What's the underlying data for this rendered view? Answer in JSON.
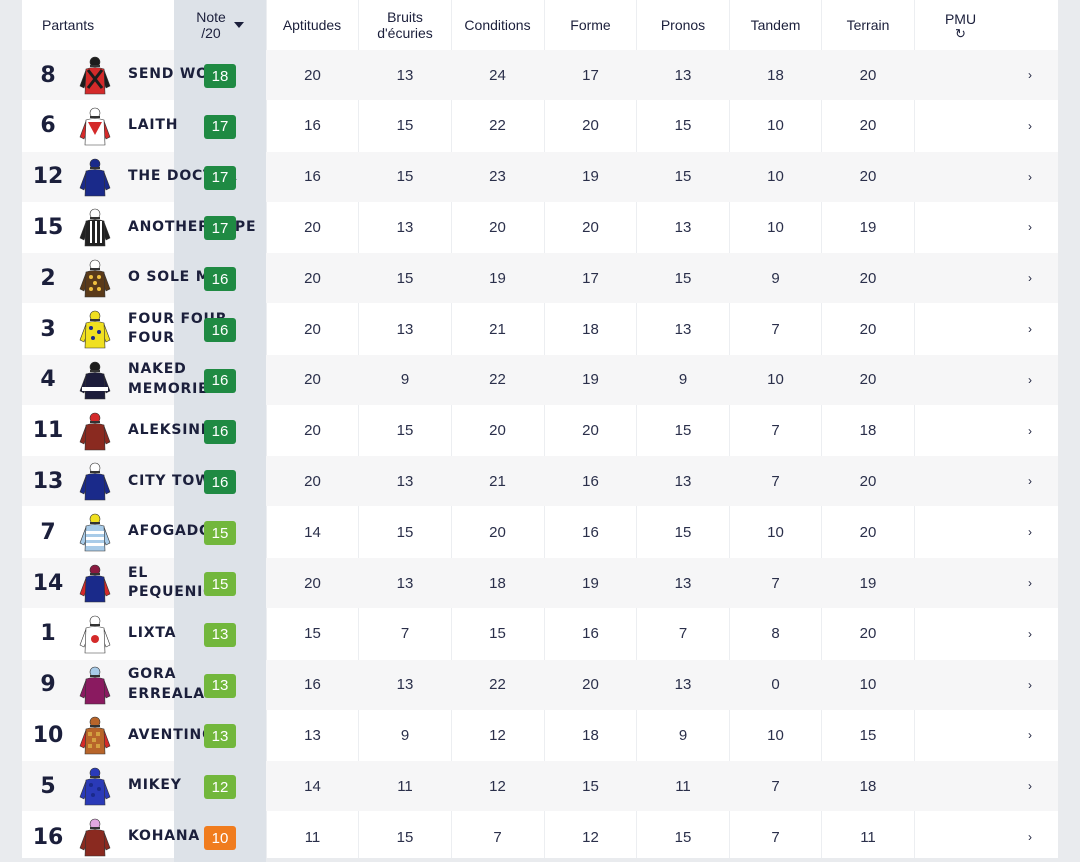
{
  "header": {
    "partants": "Partants",
    "note_line1": "Note",
    "note_line2": "/20",
    "aptitudes": "Aptitudes",
    "bruits_line1": "Bruits",
    "bruits_line2": "d'écuries",
    "conditions": "Conditions",
    "forme": "Forme",
    "pronos": "Pronos",
    "tandem": "Tandem",
    "terrain": "Terrain",
    "pmu": "PMU",
    "refresh_icon": "↻"
  },
  "colors": {
    "note_dark_green": "#1f8a43",
    "note_light_green": "#72b73c",
    "note_orange": "#f07c1e"
  },
  "rows": [
    {
      "num": "8",
      "name": "SEND WOOD",
      "note": "18",
      "note_color": "#1f8a43",
      "aptitudes": "20",
      "bruits": "13",
      "conditions": "24",
      "forme": "17",
      "pronos": "13",
      "tandem": "18",
      "terrain": "20",
      "silk": {
        "body": "#d42a2a",
        "sleeve": "#1c1c1c",
        "cap": "#1c1c1c",
        "pattern": "cross"
      }
    },
    {
      "num": "6",
      "name": "LAITH",
      "note": "17",
      "note_color": "#1f8a43",
      "aptitudes": "16",
      "bruits": "15",
      "conditions": "22",
      "forme": "20",
      "pronos": "15",
      "tandem": "10",
      "terrain": "20",
      "silk": {
        "body": "#ffffff",
        "sleeve": "#d42a2a",
        "cap": "#ffffff",
        "pattern": "chevron"
      }
    },
    {
      "num": "12",
      "name": "THE DOCTOR",
      "note": "17",
      "note_color": "#1f8a43",
      "aptitudes": "16",
      "bruits": "15",
      "conditions": "23",
      "forme": "19",
      "pronos": "15",
      "tandem": "10",
      "terrain": "20",
      "silk": {
        "body": "#1a2a8a",
        "sleeve": "#1a2a8a",
        "cap": "#1a2a8a",
        "pattern": "plain"
      }
    },
    {
      "num": "15",
      "name": "ANOTHERHOPE",
      "note": "17",
      "note_color": "#1f8a43",
      "aptitudes": "20",
      "bruits": "13",
      "conditions": "20",
      "forme": "20",
      "pronos": "13",
      "tandem": "10",
      "terrain": "19",
      "silk": {
        "body": "#222222",
        "sleeve": "#222222",
        "cap": "#ffffff",
        "pattern": "stripes"
      }
    },
    {
      "num": "2",
      "name": "O SOLE MIO",
      "note": "16",
      "note_color": "#1f8a43",
      "aptitudes": "20",
      "bruits": "15",
      "conditions": "19",
      "forme": "17",
      "pronos": "15",
      "tandem": "9",
      "terrain": "20",
      "silk": {
        "body": "#5a3a1a",
        "sleeve": "#5a3a1a",
        "cap": "#ffffff",
        "pattern": "dots"
      }
    },
    {
      "num": "3",
      "name": "FOUR FOUR FOUR",
      "note": "16",
      "note_color": "#1f8a43",
      "aptitudes": "20",
      "bruits": "13",
      "conditions": "21",
      "forme": "18",
      "pronos": "13",
      "tandem": "7",
      "terrain": "20",
      "silk": {
        "body": "#f0e020",
        "sleeve": "#f0e020",
        "cap": "#f0e020",
        "pattern": "stars"
      }
    },
    {
      "num": "4",
      "name": "NAKED MEMORIES",
      "note": "16",
      "note_color": "#1f8a43",
      "aptitudes": "20",
      "bruits": "9",
      "conditions": "22",
      "forme": "19",
      "pronos": "9",
      "tandem": "10",
      "terrain": "20",
      "silk": {
        "body": "#1c1c3a",
        "sleeve": "#1c1c3a",
        "cap": "#1c1c1c",
        "pattern": "band"
      }
    },
    {
      "num": "11",
      "name": "ALEKSINE",
      "note": "16",
      "note_color": "#1f8a43",
      "aptitudes": "20",
      "bruits": "15",
      "conditions": "20",
      "forme": "20",
      "pronos": "15",
      "tandem": "7",
      "terrain": "18",
      "silk": {
        "body": "#8a2a20",
        "sleeve": "#8a2a20",
        "cap": "#d42a2a",
        "pattern": "plain"
      }
    },
    {
      "num": "13",
      "name": "CITY TOWN",
      "note": "16",
      "note_color": "#1f8a43",
      "aptitudes": "20",
      "bruits": "13",
      "conditions": "21",
      "forme": "16",
      "pronos": "13",
      "tandem": "7",
      "terrain": "20",
      "silk": {
        "body": "#1a2a8a",
        "sleeve": "#1a2a8a",
        "cap": "#ffffff",
        "pattern": "plain"
      }
    },
    {
      "num": "7",
      "name": "AFOGADO",
      "note": "15",
      "note_color": "#72b73c",
      "aptitudes": "14",
      "bruits": "15",
      "conditions": "20",
      "forme": "16",
      "pronos": "15",
      "tandem": "10",
      "terrain": "20",
      "silk": {
        "body": "#a8cbe8",
        "sleeve": "#a8cbe8",
        "cap": "#f0e020",
        "pattern": "hoops"
      }
    },
    {
      "num": "14",
      "name": "EL PEQUENIO",
      "note": "15",
      "note_color": "#72b73c",
      "aptitudes": "20",
      "bruits": "13",
      "conditions": "18",
      "forme": "19",
      "pronos": "13",
      "tandem": "7",
      "terrain": "19",
      "silk": {
        "body": "#1a2a8a",
        "sleeve": "#d42a2a",
        "cap": "#8a1a40",
        "pattern": "plain"
      }
    },
    {
      "num": "1",
      "name": "LIXTA",
      "note": "13",
      "note_color": "#72b73c",
      "aptitudes": "15",
      "bruits": "7",
      "conditions": "15",
      "forme": "16",
      "pronos": "7",
      "tandem": "8",
      "terrain": "20",
      "silk": {
        "body": "#ffffff",
        "sleeve": "#ffffff",
        "cap": "#ffffff",
        "pattern": "disc"
      }
    },
    {
      "num": "9",
      "name": "GORA ERREALA",
      "note": "13",
      "note_color": "#72b73c",
      "aptitudes": "16",
      "bruits": "13",
      "conditions": "22",
      "forme": "20",
      "pronos": "13",
      "tandem": "0",
      "terrain": "10",
      "silk": {
        "body": "#8a1a60",
        "sleeve": "#8a1a60",
        "cap": "#a8cbe8",
        "pattern": "plain"
      }
    },
    {
      "num": "10",
      "name": "AVENTINO",
      "note": "13",
      "note_color": "#72b73c",
      "aptitudes": "13",
      "bruits": "9",
      "conditions": "12",
      "forme": "18",
      "pronos": "9",
      "tandem": "10",
      "terrain": "15",
      "silk": {
        "body": "#b8652a",
        "sleeve": "#d42a2a",
        "cap": "#b8652a",
        "pattern": "check"
      }
    },
    {
      "num": "5",
      "name": "MIKEY",
      "note": "12",
      "note_color": "#72b73c",
      "aptitudes": "14",
      "bruits": "11",
      "conditions": "12",
      "forme": "15",
      "pronos": "11",
      "tandem": "7",
      "terrain": "18",
      "silk": {
        "body": "#2a3ab8",
        "sleeve": "#2a3ab8",
        "cap": "#2a3ab8",
        "pattern": "stars"
      }
    },
    {
      "num": "16",
      "name": "KOHANA",
      "note": "10",
      "note_color": "#f07c1e",
      "aptitudes": "11",
      "bruits": "15",
      "conditions": "7",
      "forme": "12",
      "pronos": "15",
      "tandem": "7",
      "terrain": "11",
      "silk": {
        "body": "#8a2a20",
        "sleeve": "#8a2a20",
        "cap": "#e0a8e0",
        "pattern": "plain"
      }
    }
  ],
  "chevron": "›"
}
